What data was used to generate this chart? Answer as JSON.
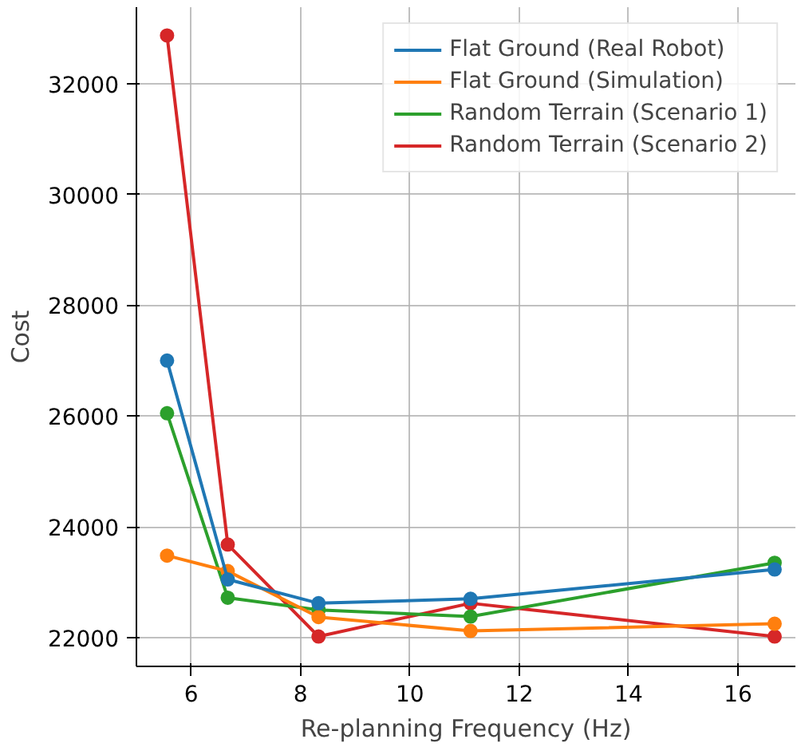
{
  "chart_data": {
    "type": "line",
    "xlabel": "Re-planning Frequency (Hz)",
    "ylabel": "Cost",
    "x": [
      5.56,
      6.67,
      8.33,
      11.11,
      16.67
    ],
    "series": [
      {
        "name": "Flat Ground (Real Robot)",
        "color": "#1f77b4",
        "values": [
          27000,
          23050,
          22620,
          22700,
          23230
        ]
      },
      {
        "name": "Flat Ground (Simulation)",
        "color": "#ff7f0e",
        "values": [
          23480,
          23200,
          22370,
          22120,
          22250
        ]
      },
      {
        "name": "Random Terrain (Scenario 1)",
        "color": "#2ca02c",
        "values": [
          26050,
          22720,
          22500,
          22380,
          23350
        ]
      },
      {
        "name": "Random Terrain (Scenario 2)",
        "color": "#d62728",
        "values": [
          32870,
          23680,
          22020,
          22620,
          22020
        ]
      }
    ],
    "xlim": [
      5.0,
      17.05
    ],
    "ylim": [
      21480,
      33380
    ],
    "xticks": [
      6,
      8,
      10,
      12,
      14,
      16
    ],
    "yticks": [
      22000,
      24000,
      26000,
      28000,
      30000,
      32000
    ],
    "grid": true,
    "legend": "top right",
    "marker": "circle",
    "line_style": "solid"
  }
}
